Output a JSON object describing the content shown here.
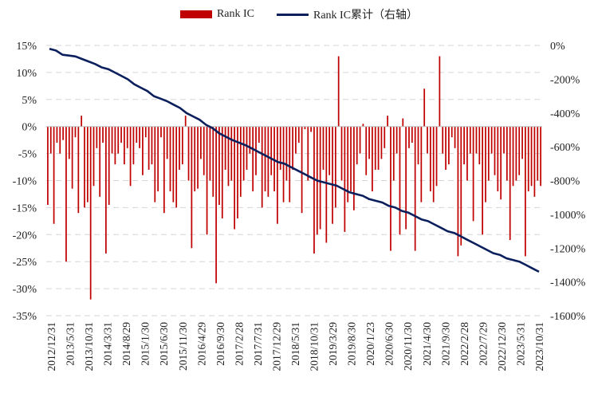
{
  "chart_data": {
    "type": "bar+line",
    "legend": [
      {
        "name": "Rank IC",
        "kind": "bar",
        "color": "#C00000"
      },
      {
        "name": "Rank IC累计（右轴）",
        "kind": "line",
        "color": "#0B1F5C"
      }
    ],
    "left_axis": {
      "ylim": [
        -35,
        15
      ],
      "ticks": [
        15,
        10,
        5,
        0,
        -5,
        -10,
        -15,
        -20,
        -25,
        -30,
        -35
      ],
      "tick_labels": [
        "15%",
        "10%",
        "5%",
        "0%",
        "-5%",
        "-10%",
        "-15%",
        "-20%",
        "-25%",
        "-30%",
        "-35%"
      ]
    },
    "right_axis": {
      "ylim": [
        -1600,
        0
      ],
      "ticks": [
        0,
        -200,
        -400,
        -600,
        -800,
        -1000,
        -1200,
        -1400,
        -1600
      ],
      "tick_labels": [
        "0%",
        "-200%",
        "-400%",
        "-600%",
        "-800%",
        "-1000%",
        "-1200%",
        "-1400%",
        "-1600%"
      ]
    },
    "x_tick_labels": [
      "2012/12/31",
      "2013/5/31",
      "2013/10/31",
      "2014/3/31",
      "2014/8/29",
      "2015/1/30",
      "2015/6/30",
      "2015/11/30",
      "2016/4/29",
      "2016/9/30",
      "2017/2/28",
      "2017/7/31",
      "2017/12/29",
      "2018/5/31",
      "2018/10/31",
      "2019/3/29",
      "2019/8/30",
      "2020/1/23",
      "2020/6/30",
      "2020/11/30",
      "2021/4/30",
      "2021/9/30",
      "2022/2/28",
      "2022/7/29",
      "2022/12/30",
      "2023/5/31",
      "2023/10/31"
    ],
    "rank_ic_percent": [
      -14.5,
      -5,
      -18,
      -3,
      -5,
      -2.5,
      -25,
      -6,
      -11.5,
      -2,
      -16,
      2,
      -15,
      -14,
      -32,
      -11,
      -4,
      -13,
      -3,
      -23.5,
      -14.5,
      -5,
      -7,
      -5,
      -3,
      -7,
      -4,
      -11,
      -7,
      -3,
      -4,
      -9,
      -2,
      -8,
      -7,
      -14,
      -12,
      -2,
      -16,
      -6,
      -12,
      -14,
      -15,
      -8,
      -7,
      2,
      -10,
      -22.5,
      -12,
      -11.5,
      -6,
      -9,
      -20,
      -10,
      -13,
      -29,
      -14.5,
      -17,
      -8,
      -11,
      -10,
      -19,
      -17,
      -13,
      -10,
      -8,
      -5,
      -12,
      -9,
      -3,
      -15,
      -12,
      -13,
      -9,
      -12,
      -18,
      -8,
      -14,
      -10,
      -14,
      -8,
      -5,
      -3,
      -16,
      -0.5,
      -10,
      -1,
      -23.5,
      -20,
      -19,
      -8,
      -21.5,
      -9,
      -18,
      -15,
      13,
      -10,
      -19.5,
      -14,
      -12,
      -15.5,
      -7,
      -5,
      0.5,
      -9,
      -6,
      -12,
      -8,
      -8,
      -6,
      -4,
      2,
      -23,
      -10,
      -5,
      -20,
      1.5,
      -19,
      -4,
      -3,
      -23,
      -7,
      -14,
      7,
      -5,
      -12,
      -14,
      -11,
      13,
      -5,
      -8,
      -7,
      -2,
      -4,
      -24,
      -22,
      -7,
      -10,
      -5,
      -17.5,
      -5,
      -7,
      -20,
      -14,
      -10,
      -5,
      -9,
      -12,
      -13.5,
      -5,
      -10,
      -21,
      -11,
      -10,
      -9,
      -6,
      -24,
      -12,
      -11,
      -13,
      -10,
      -11
    ],
    "cumulative_percent": [
      -20,
      -30,
      -55,
      -60,
      -65,
      -80,
      -95,
      -110,
      -130,
      -140,
      -160,
      -180,
      -200,
      -230,
      -250,
      -270,
      -300,
      -315,
      -330,
      -350,
      -370,
      -400,
      -420,
      -440,
      -470,
      -490,
      -520,
      -540,
      -560,
      -575,
      -590,
      -610,
      -630,
      -650,
      -670,
      -690,
      -700,
      -720,
      -740,
      -760,
      -780,
      -800,
      -810,
      -820,
      -830,
      -850,
      -870,
      -880,
      -890,
      -910,
      -920,
      -930,
      -950,
      -960,
      -980,
      -990,
      -1010,
      -1030,
      -1040,
      -1060,
      -1080,
      -1100,
      -1110,
      -1130,
      -1150,
      -1170,
      -1190,
      -1210,
      -1230,
      -1240,
      -1260,
      -1270,
      -1280,
      -1300,
      -1320,
      -1340
    ]
  }
}
